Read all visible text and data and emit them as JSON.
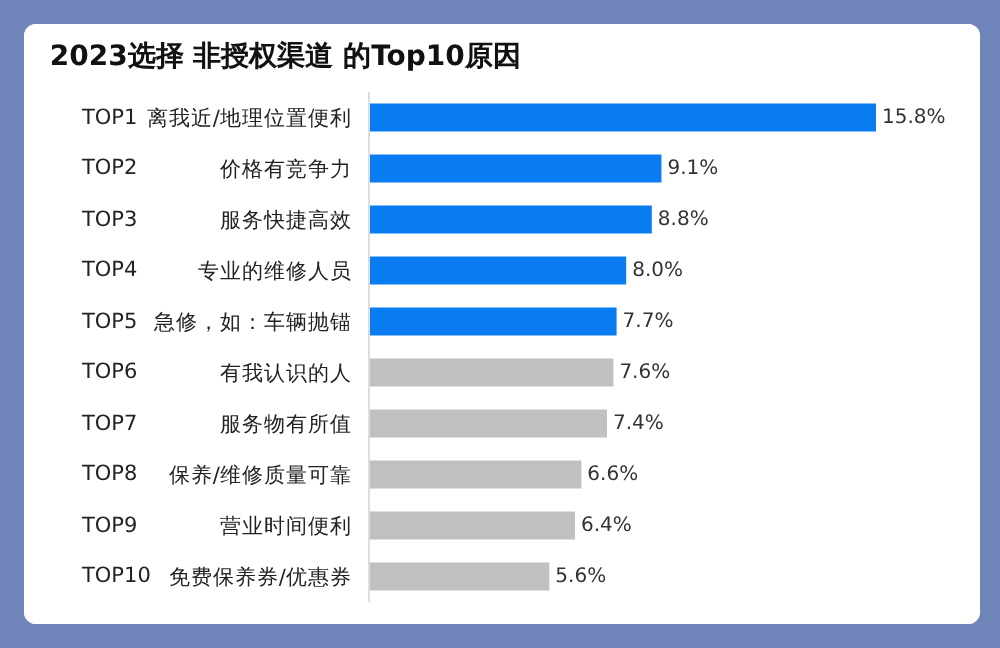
{
  "chart_data": {
    "type": "bar",
    "orientation": "horizontal",
    "title": "2023选择 非授权渠道 的Top10原因",
    "categories": [
      "离我近/地理位置便利",
      "价格有竞争力",
      "服务快捷高效",
      "专业的维修人员",
      "急修，如：车辆抛锚",
      "有我认识的人",
      "服务物有所值",
      "保养/维修质量可靠",
      "营业时间便利",
      "免费保养券/优惠券"
    ],
    "values": [
      15.8,
      9.1,
      8.8,
      8.0,
      7.7,
      7.6,
      7.4,
      6.6,
      6.4,
      5.6
    ],
    "value_labels": [
      "15.8%",
      "9.1%",
      "8.8%",
      "8.0%",
      "7.7%",
      "7.6%",
      "7.4%",
      "6.6%",
      "6.4%",
      "5.6%"
    ],
    "colors": [
      "#0a7cf2",
      "#0a7cf2",
      "#0a7cf2",
      "#0a7cf2",
      "#0a7cf2",
      "#c0c0c0",
      "#c0c0c0",
      "#c0c0c0",
      "#c0c0c0",
      "#c0c0c0"
    ],
    "annotations": [
      "TOP1",
      "TOP2",
      "TOP3",
      "TOP4",
      "TOP5",
      "TOP6",
      "TOP7",
      "TOP8",
      "TOP9",
      "TOP10"
    ],
    "tick_labels": "y",
    "grid": false,
    "legend": false
  }
}
